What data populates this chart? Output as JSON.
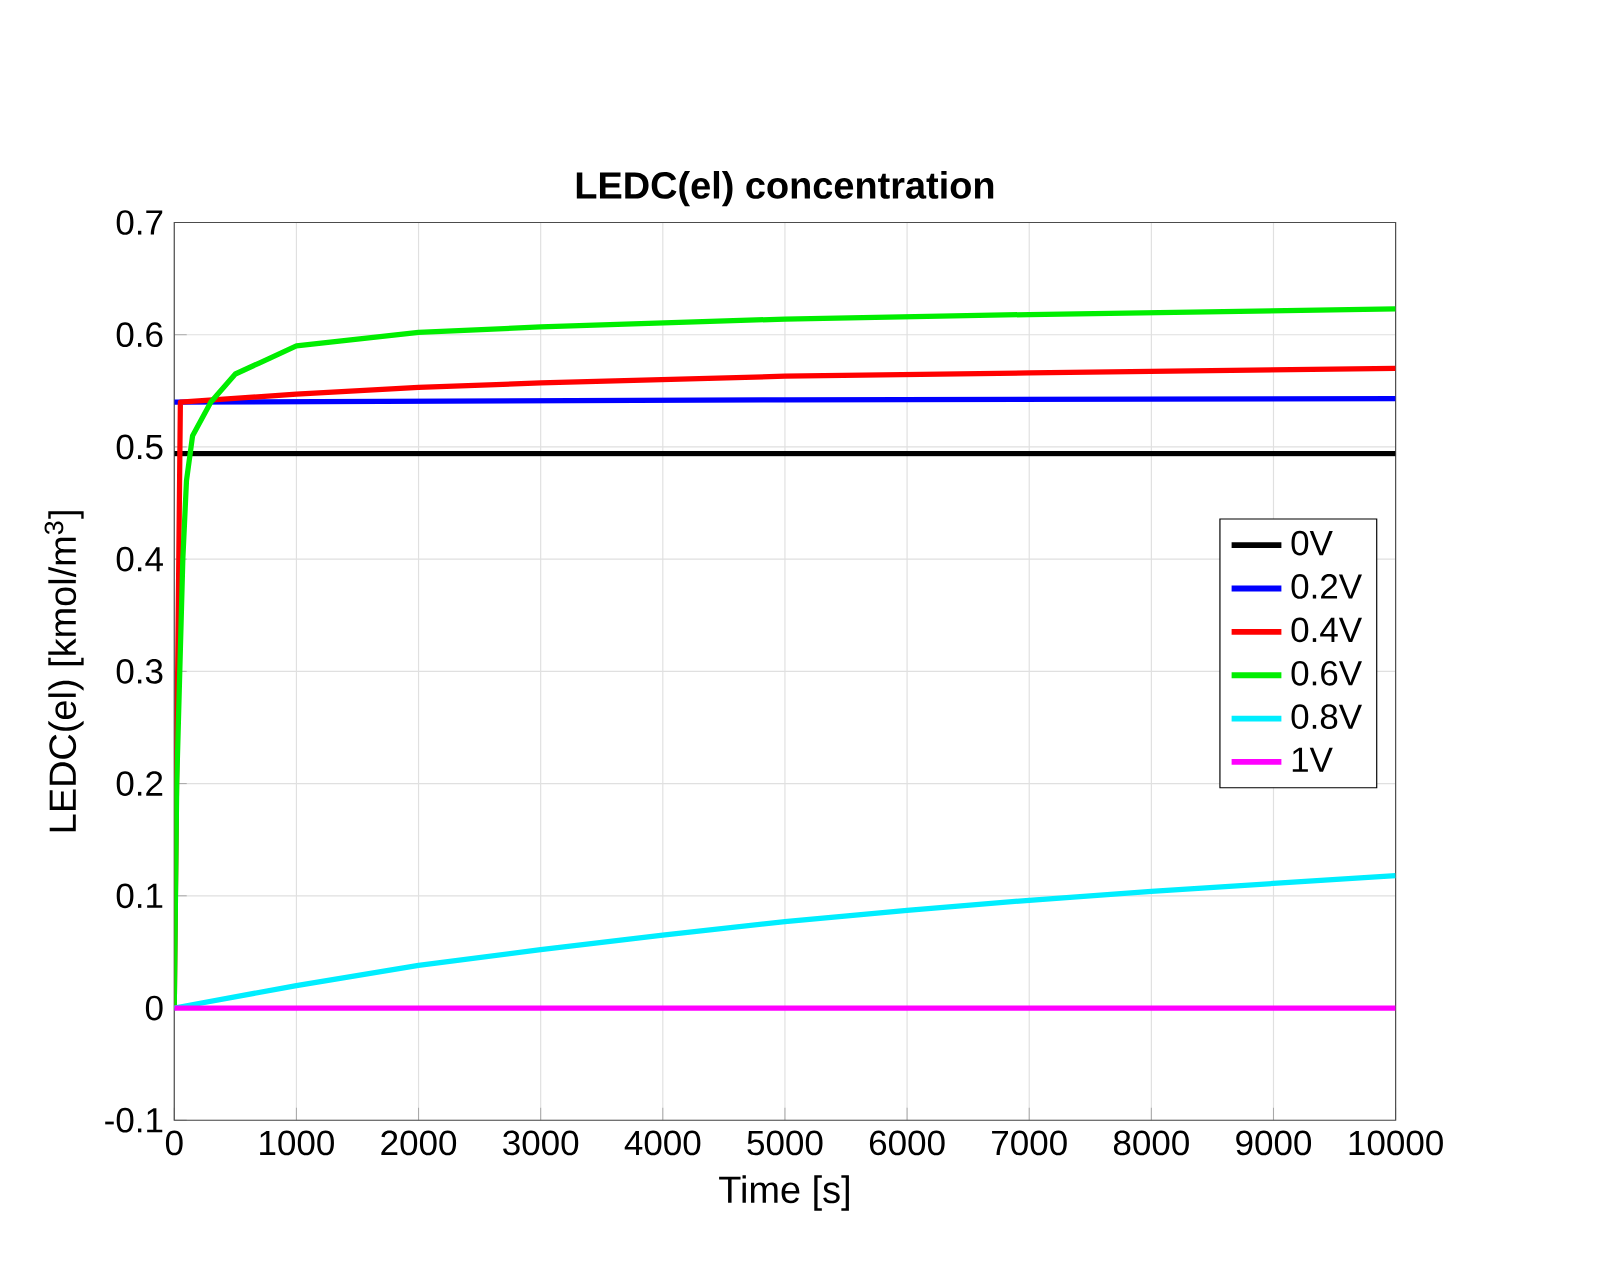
{
  "chart_data": {
    "type": "line",
    "title": "LEDC(el) concentration",
    "xlabel": "Time [s]",
    "ylabel": "LEDC(el) [kmol/m$^{3}$]",
    "xlim": [
      0,
      10000
    ],
    "ylim": [
      -0.1,
      0.7
    ],
    "xticks": [
      0,
      1000,
      2000,
      3000,
      4000,
      5000,
      6000,
      7000,
      8000,
      9000,
      10000
    ],
    "yticks": [
      -0.1,
      0,
      0.1,
      0.2,
      0.3,
      0.4,
      0.5,
      0.6,
      0.7
    ],
    "grid": true,
    "legend": "right",
    "marker": "none",
    "line_style": "solid",
    "series": [
      {
        "name": "0V",
        "color": "#000000",
        "x": [
          0,
          10000
        ],
        "values": [
          0.494,
          0.494
        ]
      },
      {
        "name": "0.2V",
        "color": "#0000ff",
        "x": [
          0,
          5000,
          10000
        ],
        "values": [
          0.54,
          0.542,
          0.543
        ]
      },
      {
        "name": "0.4V",
        "color": "#ff0000",
        "x": [
          0,
          50,
          1000,
          2000,
          3000,
          5000,
          7000,
          10000
        ],
        "values": [
          0,
          0.54,
          0.547,
          0.553,
          0.557,
          0.563,
          0.566,
          0.57
        ]
      },
      {
        "name": "0.6V",
        "color": "#00ee00",
        "x": [
          0,
          20,
          70,
          100,
          150,
          300,
          500,
          700,
          1000,
          2000,
          3000,
          5000,
          7000,
          10000
        ],
        "values": [
          0,
          0.2,
          0.4,
          0.47,
          0.51,
          0.54,
          0.565,
          0.575,
          0.59,
          0.602,
          0.607,
          0.614,
          0.618,
          0.623
        ]
      },
      {
        "name": "0.8V",
        "color": "#00eeff",
        "x": [
          0,
          1000,
          2000,
          3000,
          4000,
          5000,
          6000,
          7000,
          8000,
          9000,
          10000
        ],
        "values": [
          0,
          0.02,
          0.038,
          0.052,
          0.065,
          0.077,
          0.087,
          0.096,
          0.104,
          0.111,
          0.118
        ]
      },
      {
        "name": "1V",
        "color": "#ff00ff",
        "x": [
          0,
          10000
        ],
        "values": [
          0,
          0
        ]
      }
    ]
  }
}
